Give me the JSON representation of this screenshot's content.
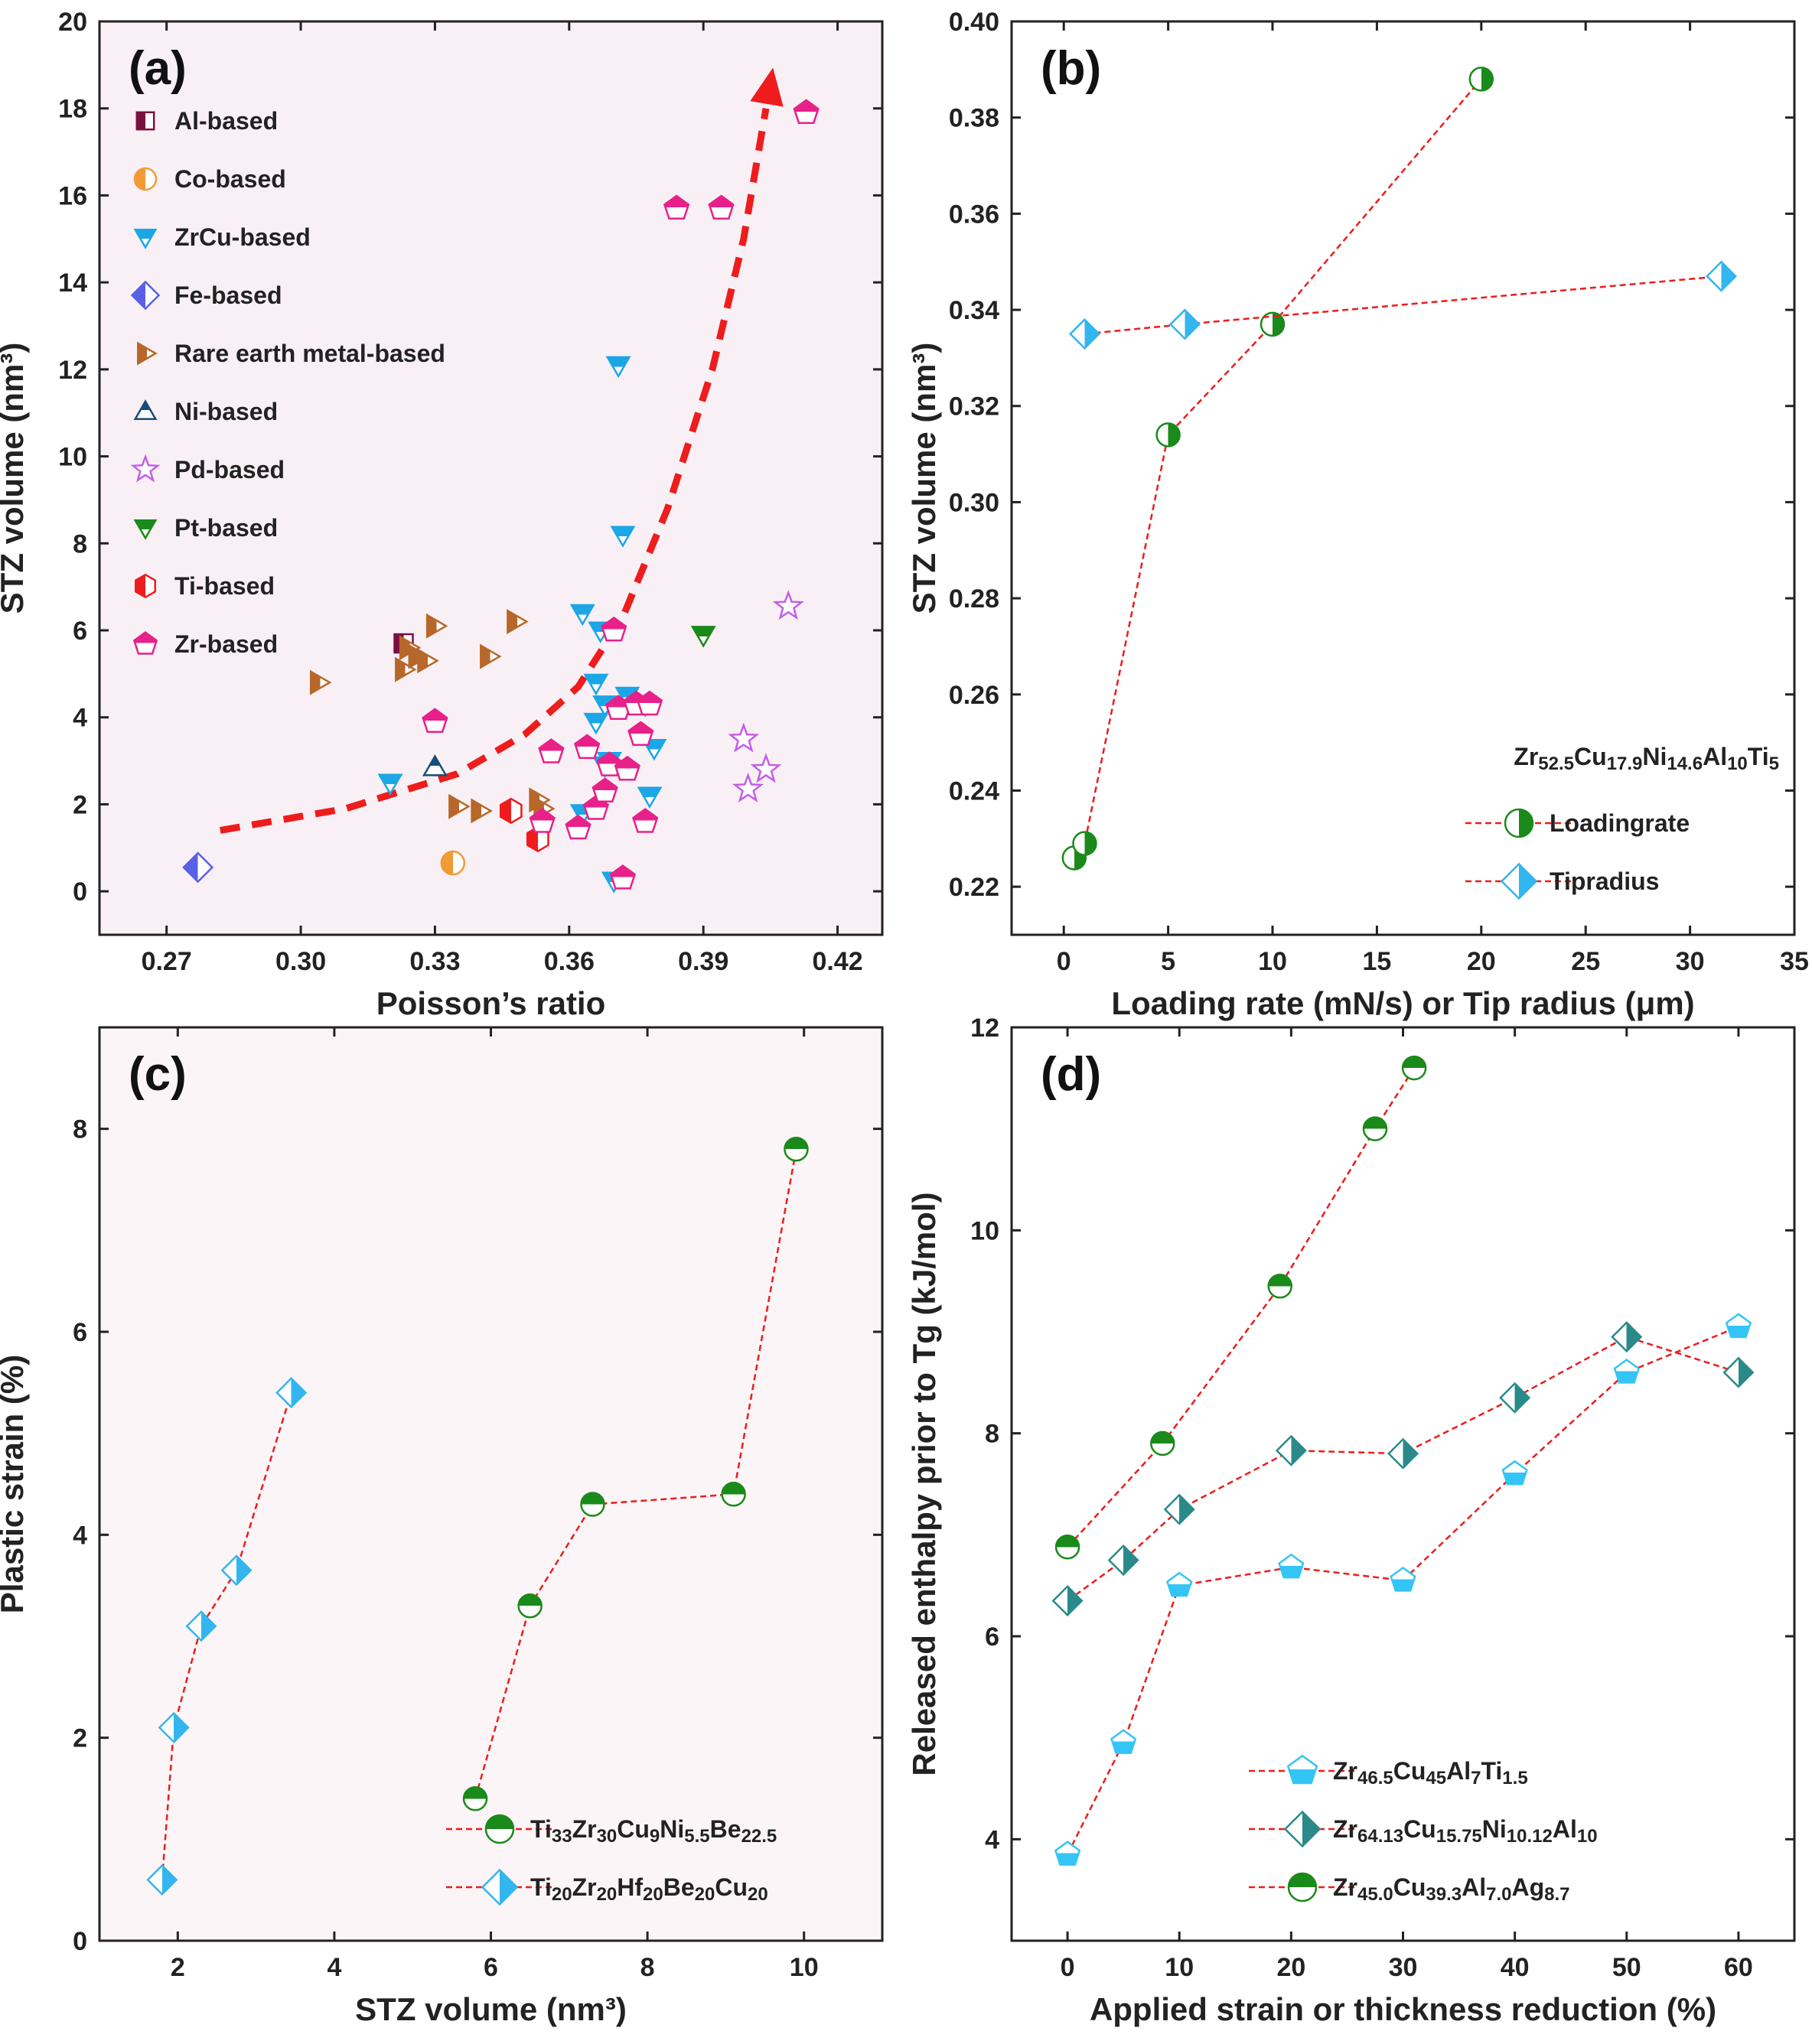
{
  "chart_data": [
    {
      "type": "scatter",
      "panel_label": "(a)",
      "xlabel": "Poisson’s ratio",
      "ylabel": "STZ volume (nm³)",
      "xlim": [
        0.255,
        0.43
      ],
      "ylim": [
        -1,
        20
      ],
      "xticks": [
        "0.27",
        "0.30",
        "0.33",
        "0.36",
        "0.39",
        "0.42"
      ],
      "yticks": [
        "0",
        "2",
        "4",
        "6",
        "8",
        "10",
        "12",
        "14",
        "16",
        "18",
        "20"
      ],
      "legend_position": "top-left",
      "trend_arrow": {
        "color": "#ee1c1c",
        "x": [
          0.282,
          0.31,
          0.335,
          0.35,
          0.362,
          0.372,
          0.382,
          0.392,
          0.399,
          0.404
        ],
        "y": [
          1.4,
          1.9,
          2.7,
          3.6,
          4.7,
          6.3,
          8.8,
          12.0,
          15.0,
          18.0
        ]
      },
      "series": [
        {
          "name": "Al-based",
          "marker": "square",
          "color": "#7a1040",
          "x": [
            0.323
          ],
          "y": [
            5.7
          ]
        },
        {
          "name": "Co-based",
          "marker": "circle",
          "color": "#f29a35",
          "x": [
            0.334
          ],
          "y": [
            0.65
          ]
        },
        {
          "name": "ZrCu-based",
          "marker": "triangle-down",
          "color": "#1ba6e6",
          "x": [
            0.32,
            0.363,
            0.366,
            0.367,
            0.368,
            0.369,
            0.37,
            0.371,
            0.372,
            0.373,
            0.377,
            0.378,
            0.379,
            0.363,
            0.366,
            0.368
          ],
          "y": [
            2.5,
            6.4,
            4.8,
            6.0,
            4.3,
            3.0,
            0.25,
            12.1,
            8.2,
            4.5,
            4.3,
            2.2,
            3.3,
            1.8,
            3.9,
            2.9
          ]
        },
        {
          "name": "Fe-based",
          "marker": "diamond",
          "color": "#5960e8",
          "x": [
            0.277
          ],
          "y": [
            0.55
          ]
        },
        {
          "name": "Rare earth metal-based",
          "marker": "triangle-right",
          "color": "#b7672a",
          "x": [
            0.304,
            0.323,
            0.324,
            0.326,
            0.328,
            0.33,
            0.335,
            0.34,
            0.342,
            0.348,
            0.353,
            0.354
          ],
          "y": [
            4.8,
            5.1,
            5.6,
            5.4,
            5.3,
            6.1,
            1.95,
            1.85,
            5.4,
            6.2,
            2.1,
            1.9
          ]
        },
        {
          "name": "Ni-based",
          "marker": "triangle-up",
          "color": "#174d7a",
          "x": [
            0.33
          ],
          "y": [
            2.85
          ]
        },
        {
          "name": "Pd-based",
          "marker": "star",
          "color": "#c35ee8",
          "x": [
            0.399,
            0.4,
            0.404,
            0.409
          ],
          "y": [
            3.5,
            2.35,
            2.8,
            6.55
          ]
        },
        {
          "name": "Pt-based",
          "marker": "triangle-down",
          "color": "#1a8a1a",
          "x": [
            0.39
          ],
          "y": [
            5.9
          ]
        },
        {
          "name": "Ti-based",
          "marker": "hexagon",
          "color": "#ee1c1c",
          "x": [
            0.347,
            0.353
          ],
          "y": [
            1.85,
            1.2
          ]
        },
        {
          "name": "Zr-based",
          "marker": "pentagon",
          "color": "#e8208a",
          "x": [
            0.33,
            0.354,
            0.356,
            0.362,
            0.364,
            0.366,
            0.368,
            0.369,
            0.37,
            0.371,
            0.372,
            0.373,
            0.375,
            0.376,
            0.377,
            0.378,
            0.384,
            0.394,
            0.413
          ],
          "y": [
            3.9,
            1.6,
            3.2,
            1.45,
            3.3,
            1.9,
            2.3,
            2.9,
            6.0,
            4.2,
            0.3,
            2.8,
            4.3,
            3.6,
            1.6,
            4.3,
            15.7,
            15.7,
            17.9
          ]
        }
      ]
    },
    {
      "type": "line",
      "panel_label": "(b)",
      "xlabel": "Loading rate (mN/s) or Tip radius (μm)",
      "ylabel": "STZ volume (nm³)",
      "xlim": [
        -2.5,
        35
      ],
      "ylim": [
        0.21,
        0.4
      ],
      "xticks": [
        "0",
        "5",
        "10",
        "15",
        "20",
        "25",
        "30",
        "35"
      ],
      "yticks": [
        "0.22",
        "0.24",
        "0.26",
        "0.28",
        "0.30",
        "0.32",
        "0.34",
        "0.36",
        "0.38",
        "0.40"
      ],
      "annotation": "Zr52.5Cu17.9Ni14.6Al10Ti5",
      "legend_position": "bottom-right",
      "series": [
        {
          "name": "Loading rate",
          "marker": "circle-halfright",
          "color": "#1a8a1a",
          "x": [
            0.5,
            1.0,
            5.0,
            10.0,
            20.0
          ],
          "y": [
            0.226,
            0.229,
            0.314,
            0.337,
            0.388
          ]
        },
        {
          "name": "Tip radius",
          "marker": "diamond-halfright",
          "color": "#33b5ef",
          "x": [
            1.0,
            5.8,
            31.5
          ],
          "y": [
            0.335,
            0.337,
            0.347
          ]
        }
      ]
    },
    {
      "type": "line",
      "panel_label": "(c)",
      "xlabel": "STZ volume (nm³)",
      "ylabel": "Plastic strain (%)",
      "xlim": [
        1.0,
        11.0
      ],
      "ylim": [
        0,
        9.0
      ],
      "xticks": [
        "2",
        "4",
        "6",
        "8",
        "10"
      ],
      "yticks": [
        "0",
        "2",
        "4",
        "6",
        "8"
      ],
      "legend_position": "bottom-right",
      "series": [
        {
          "name": "Ti33Zr30Cu9Ni5.5Be22.5",
          "marker": "circle-halftop",
          "color": "#1a8a1a",
          "x": [
            5.8,
            6.5,
            7.3,
            9.1,
            9.9
          ],
          "y": [
            1.4,
            3.3,
            4.3,
            4.4,
            7.8
          ]
        },
        {
          "name": "Ti20Zr20Hf20Be20Cu20",
          "marker": "diamond-halfright",
          "color": "#33b5ef",
          "x": [
            1.8,
            1.95,
            2.3,
            2.75,
            3.45
          ],
          "y": [
            0.6,
            2.1,
            3.1,
            3.65,
            5.4
          ]
        }
      ]
    },
    {
      "type": "line",
      "panel_label": "(d)",
      "xlabel": "Applied strain or thickness reduction (%)",
      "ylabel": "Released enthalpy prior to Tg (kJ/mol)",
      "xlim": [
        -5,
        65
      ],
      "ylim": [
        3.0,
        12.0
      ],
      "xticks": [
        "0",
        "10",
        "20",
        "30",
        "40",
        "50",
        "60"
      ],
      "yticks": [
        "4",
        "6",
        "8",
        "10",
        "12"
      ],
      "legend_position": "bottom-right",
      "series": [
        {
          "name": "Zr46.5Cu45Al7Ti1.5",
          "marker": "pentagon-halfbottom",
          "color": "#33c5f5",
          "x": [
            0,
            5,
            10,
            20,
            30,
            40,
            50,
            60
          ],
          "y": [
            3.85,
            4.95,
            6.5,
            6.68,
            6.55,
            7.6,
            8.6,
            9.05
          ]
        },
        {
          "name": "Zr64.13Cu15.75Ni10.12Al10",
          "marker": "diamond-halfright",
          "color": "#2a8a8a",
          "x": [
            0,
            5,
            10,
            20,
            30,
            40,
            50,
            60
          ],
          "y": [
            6.35,
            6.75,
            7.25,
            7.83,
            7.8,
            8.35,
            8.95,
            8.6
          ]
        },
        {
          "name": "Zr45.0Cu39.3Al7.0Ag8.7",
          "marker": "circle-halftop",
          "color": "#1a8a1a",
          "x": [
            0,
            8.5,
            19,
            27.5,
            31
          ],
          "y": [
            6.88,
            7.9,
            9.45,
            11.0,
            11.6
          ]
        }
      ]
    }
  ]
}
